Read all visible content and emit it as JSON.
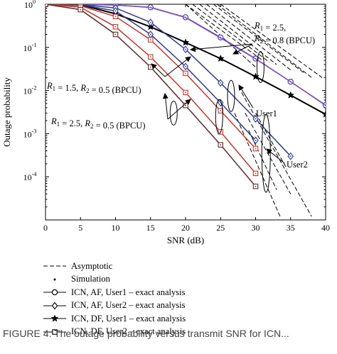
{
  "chart_data": {
    "type": "line",
    "xlabel": "SNR (dB)",
    "ylabel": "Outage probability",
    "xlim": [
      0,
      40
    ],
    "ylim": [
      1e-05,
      1
    ],
    "yscale": "log",
    "grid": false,
    "x_ticks": [
      "0",
      "5",
      "10",
      "15",
      "20",
      "25",
      "30",
      "35",
      "40"
    ],
    "y_ticks": [
      {
        "value": 1,
        "label": "10",
        "exp": "0"
      },
      {
        "value": 0.1,
        "label": "10",
        "exp": "-1"
      },
      {
        "value": 0.01,
        "label": "10",
        "exp": "-2"
      },
      {
        "value": 0.001,
        "label": "10",
        "exp": "-3"
      },
      {
        "value": 0.0001,
        "label": "10",
        "exp": "-4"
      }
    ],
    "series": [
      {
        "style": "black-star",
        "color": "#000000",
        "marker": "star",
        "x": [
          0,
          5,
          10,
          15,
          20,
          25,
          30,
          35,
          40
        ],
        "y": [
          1,
          0.97,
          0.6,
          0.3,
          0.13,
          0.055,
          0.021,
          0.0078,
          0.0028
        ]
      },
      {
        "style": "blue-circle",
        "color": "#3b3db0",
        "marker": "circle",
        "x": [
          0,
          5,
          10,
          15,
          20,
          25,
          30,
          35,
          40
        ],
        "y": [
          1,
          0.99,
          0.96,
          0.85,
          0.5,
          0.17,
          0.055,
          0.016,
          0.0046
        ]
      },
      {
        "style": "purple-diamond",
        "color": "#8a55c0",
        "marker": "none",
        "x": [
          0,
          5,
          10,
          15,
          20,
          25,
          30,
          35,
          40
        ],
        "y": [
          1,
          0.99,
          0.96,
          0.84,
          0.49,
          0.165,
          0.054,
          0.016,
          0.0045
        ]
      },
      {
        "style": "blue-diamond-1",
        "color": "#2e3a8c",
        "marker": "diamond",
        "x": [
          0,
          5,
          10,
          15,
          20,
          25,
          30,
          35
        ],
        "y": [
          1,
          0.98,
          0.82,
          0.38,
          0.09,
          0.015,
          0.0022,
          0.0003
        ]
      },
      {
        "style": "blue-diamond-2",
        "color": "#2e3a8c",
        "marker": "diamond",
        "x": [
          0,
          5,
          10,
          15,
          20,
          25,
          30
        ],
        "y": [
          1,
          0.97,
          0.7,
          0.2,
          0.036,
          0.0052,
          0.0007
        ]
      },
      {
        "style": "red-square-1",
        "color": "#c0392b",
        "marker": "square",
        "x": [
          0,
          5,
          10,
          15,
          20,
          25,
          30
        ],
        "y": [
          1,
          0.92,
          0.52,
          0.15,
          0.025,
          0.0034,
          0.00045
        ]
      },
      {
        "style": "red-square-2",
        "color": "#c0392b",
        "marker": "square",
        "x": [
          0,
          5,
          10,
          15,
          20,
          25,
          30
        ],
        "y": [
          1,
          0.85,
          0.3,
          0.06,
          0.009,
          0.0011,
          0.00012
        ]
      },
      {
        "style": "dark-square-3",
        "color": "#5a2a2a",
        "marker": "square",
        "x": [
          0,
          5,
          10,
          15,
          20,
          25,
          30
        ],
        "y": [
          1,
          0.75,
          0.2,
          0.035,
          0.0045,
          0.00055,
          6e-05
        ]
      }
    ],
    "asymptotes": [
      {
        "x": [
          20,
          30
        ],
        "y": [
          1,
          0.035
        ]
      },
      {
        "x": [
          20,
          31
        ],
        "y": [
          1,
          0.05
        ]
      },
      {
        "x": [
          21,
          32
        ],
        "y": [
          1,
          0.045
        ]
      },
      {
        "x": [
          22,
          33
        ],
        "y": [
          1,
          0.04
        ]
      },
      {
        "x": [
          23,
          35
        ],
        "y": [
          1,
          0.03
        ]
      },
      {
        "x": [
          24,
          37
        ],
        "y": [
          1,
          0.025
        ]
      },
      {
        "x": [
          24.5,
          38
        ],
        "y": [
          1,
          0.02
        ]
      },
      {
        "x": [
          25,
          39.5
        ],
        "y": [
          1,
          0.02
        ]
      },
      {
        "x": [
          30,
          34.5
        ],
        "y": [
          0.003,
          0.00015
        ]
      },
      {
        "x": [
          29,
          33
        ],
        "y": [
          0.0012,
          5e-05
        ]
      },
      {
        "x": [
          28.5,
          35
        ],
        "y": [
          0.003,
          4e-05
        ]
      },
      {
        "x": [
          27,
          33.5
        ],
        "y": [
          0.003,
          1.2e-05
        ]
      },
      {
        "x": [
          28,
          38
        ],
        "y": [
          0.009,
          1.2e-05
        ]
      }
    ],
    "annotations": [
      {
        "id": "ann-r2-5-08",
        "lines": [
          {
            "parts": [
              {
                "t": "R",
                "i": true
              },
              {
                "t": "1",
                "sub": true
              },
              {
                "t": " = 2.5,"
              }
            ]
          },
          {
            "parts": [
              {
                "t": "R",
                "i": true
              },
              {
                "t": "2",
                "sub": true
              },
              {
                "t": " = 0.8 (BPCU)"
              }
            ]
          }
        ]
      },
      {
        "id": "ann-r15-05",
        "lines": [
          {
            "parts": [
              {
                "t": "R",
                "i": true
              },
              {
                "t": "1",
                "sub": true
              },
              {
                "t": " = 1.5, "
              },
              {
                "t": "R",
                "i": true
              },
              {
                "t": "2",
                "sub": true
              },
              {
                "t": " = 0.5 (BPCU)"
              }
            ]
          }
        ]
      },
      {
        "id": "ann-r25-05",
        "lines": [
          {
            "parts": [
              {
                "t": "R",
                "i": true
              },
              {
                "t": "1",
                "sub": true
              },
              {
                "t": " = 2.5, "
              },
              {
                "t": "R",
                "i": true
              },
              {
                "t": "2",
                "sub": true
              },
              {
                "t": " = 0.5 (BPCU)"
              }
            ]
          }
        ]
      },
      {
        "id": "ann-user1",
        "lines": [
          {
            "parts": [
              {
                "t": "User1"
              }
            ]
          }
        ]
      },
      {
        "id": "ann-user2",
        "lines": [
          {
            "parts": [
              {
                "t": "User2"
              }
            ]
          }
        ]
      }
    ],
    "legend": {
      "placement": "below",
      "entries": [
        {
          "marker": "dashed",
          "label": "Asymptotic"
        },
        {
          "marker": "dot",
          "label": "Simulation"
        },
        {
          "marker": "circle",
          "label": "ICN, AF, User1 – exact analysis"
        },
        {
          "marker": "diamond",
          "label": "ICN, AF, User2 – exact analysis"
        },
        {
          "marker": "star",
          "label": "ICN, DF, User1 – exact analysis"
        },
        {
          "marker": "square",
          "label": "ICN, DF, User2 – exact analysis"
        }
      ]
    }
  },
  "caption": "FIGURE 4: The outage probability versus transmit SNR for ICN..."
}
